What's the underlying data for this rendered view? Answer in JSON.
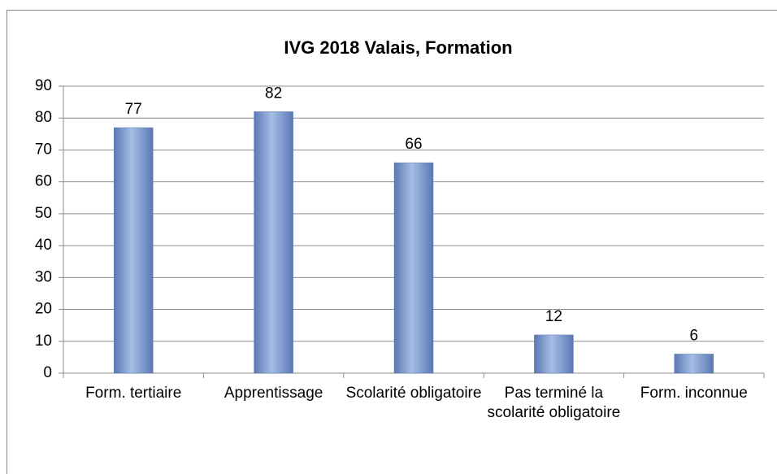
{
  "chart_data": {
    "type": "bar",
    "title": "IVG 2018 Valais, Formation",
    "categories": [
      "Form. tertiaire",
      "Apprentissage",
      "Scolarité obligatoire",
      "Pas terminé la scolarité obligatoire",
      "Form. inconnue"
    ],
    "values": [
      77,
      82,
      66,
      12,
      6
    ],
    "color": "#7b97cc",
    "ylim": [
      0,
      90
    ],
    "yticks": [
      0,
      10,
      20,
      30,
      40,
      50,
      60,
      70,
      80,
      90
    ],
    "grid": true
  }
}
